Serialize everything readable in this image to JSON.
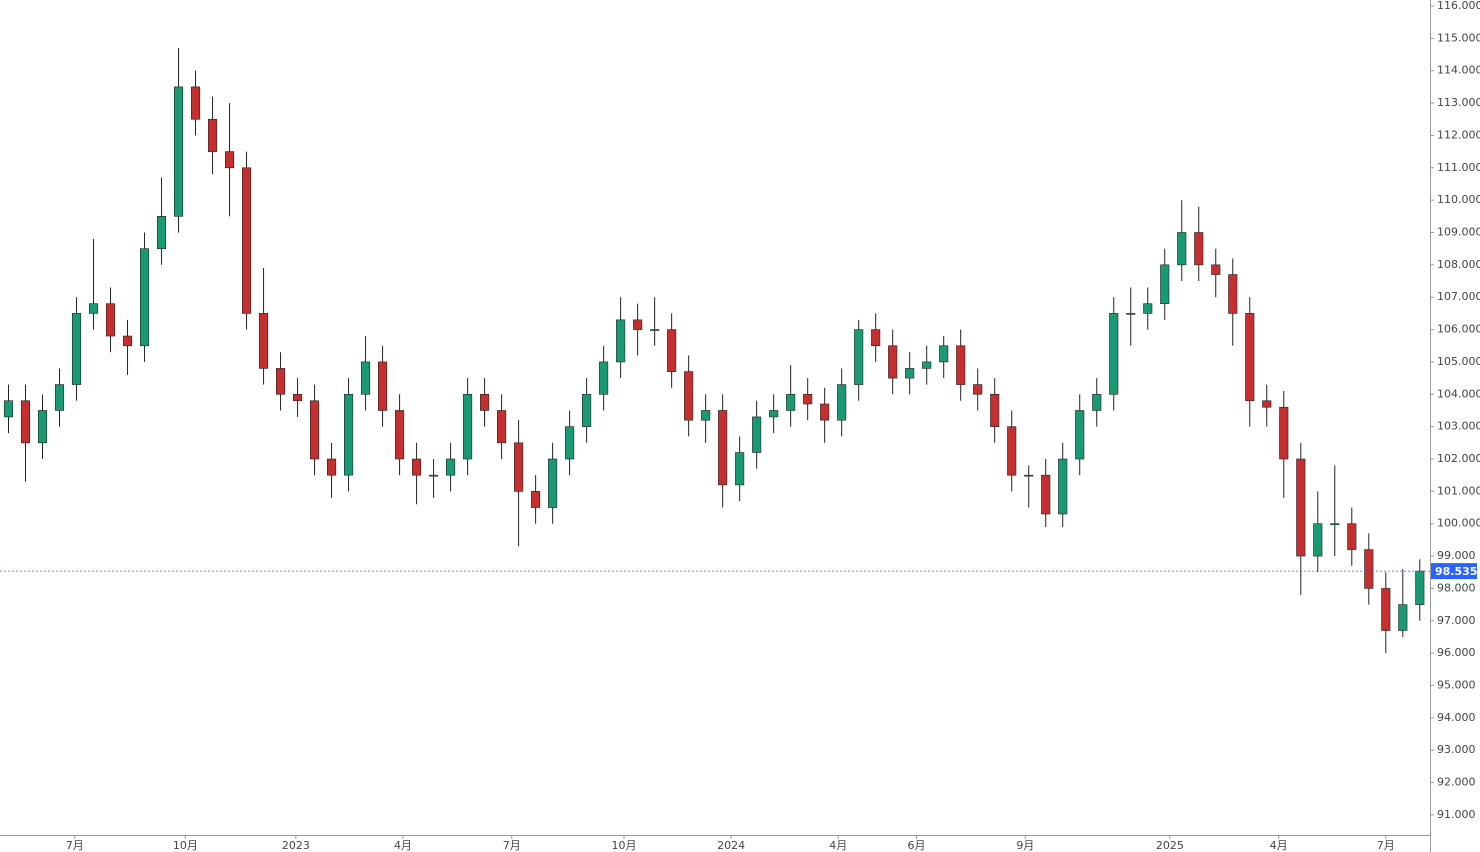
{
  "chart_data": {
    "type": "candlestick",
    "open": [
      103.3,
      103.8,
      102.5,
      103.5,
      104.3,
      106.5,
      106.8,
      105.8,
      105.5,
      108.5,
      109.5,
      113.5,
      112.5,
      111.5,
      111,
      106.5,
      104.8,
      104,
      103.8,
      102,
      101.5,
      104,
      105,
      103.5,
      102,
      101.5,
      101.5,
      102,
      104,
      103.5,
      102.5,
      101,
      100.5,
      102,
      103,
      104,
      105,
      106.3,
      106,
      106,
      104.7,
      103.2,
      103.5,
      101.2,
      102.2,
      103.3,
      103.5,
      104,
      103.7,
      103.2,
      104.3,
      106,
      105.5,
      104.5,
      104.8,
      105,
      105.5,
      104.3,
      104,
      103,
      101.5,
      101.5,
      100.3,
      102,
      103.5,
      104,
      106.5,
      106.5,
      106.8,
      108,
      109,
      108,
      107.7,
      106.5,
      103.8,
      103.6,
      102,
      99,
      100,
      100,
      99.2,
      98,
      96.7,
      97.5
    ],
    "high": [
      104.3,
      104.3,
      104,
      104.8,
      107,
      108.8,
      107.3,
      106.3,
      109,
      110.7,
      114.7,
      114,
      113.2,
      113,
      111.5,
      107.9,
      105.3,
      104.5,
      104.3,
      102.5,
      104.5,
      105.8,
      105.5,
      104,
      102.5,
      102,
      102.5,
      104.5,
      104.5,
      104,
      103.2,
      101.5,
      102.5,
      103.5,
      104.5,
      105.5,
      107,
      106.8,
      107,
      106.5,
      105.2,
      104,
      104,
      102.7,
      103.8,
      104,
      104.9,
      104.5,
      104.2,
      104.8,
      106.3,
      106.5,
      106,
      105.3,
      105.5,
      105.8,
      106,
      104.8,
      104.5,
      103.5,
      101.8,
      102,
      102.5,
      104,
      104.5,
      107,
      107.3,
      107.3,
      108.5,
      110,
      109.8,
      108.5,
      108.2,
      107,
      104.3,
      104.1,
      102.5,
      101,
      101.8,
      100.5,
      99.7,
      98.5,
      98.6,
      98.9
    ],
    "low": [
      102.8,
      101.3,
      102,
      103,
      103.8,
      106,
      105.3,
      104.6,
      105,
      108,
      109,
      112,
      110.8,
      109.5,
      106,
      104.3,
      103.5,
      103.3,
      101.5,
      100.8,
      101,
      103.5,
      103,
      101.5,
      100.6,
      100.8,
      101,
      101.5,
      103,
      102,
      99.3,
      100,
      100,
      101.5,
      102.5,
      103.5,
      104.5,
      105.2,
      105.5,
      104.2,
      102.7,
      102.5,
      100.5,
      100.7,
      101.7,
      102.8,
      103,
      103.2,
      102.5,
      102.7,
      103.8,
      105,
      104,
      104,
      104.3,
      104.5,
      103.8,
      103.5,
      102.5,
      101,
      100.5,
      99.9,
      99.9,
      101.5,
      103,
      103.5,
      105.5,
      106,
      106.3,
      107.5,
      107.5,
      107,
      105.5,
      103,
      103,
      100.8,
      97.8,
      98.5,
      99,
      98.7,
      97.5,
      96,
      96.5,
      97
    ],
    "close": [
      103.8,
      102.5,
      103.5,
      104.3,
      106.5,
      106.8,
      105.8,
      105.5,
      108.5,
      109.5,
      113.5,
      112.5,
      111.5,
      111,
      106.5,
      104.8,
      104,
      103.8,
      102,
      101.5,
      104,
      105,
      103.5,
      102,
      101.5,
      101.5,
      102,
      104,
      103.5,
      102.5,
      101,
      100.5,
      102,
      103,
      104,
      105,
      106.3,
      106,
      106,
      104.7,
      103.2,
      103.5,
      101.2,
      102.2,
      103.3,
      103.5,
      104,
      103.7,
      103.2,
      104.3,
      106,
      105.5,
      104.5,
      104.8,
      105,
      105.5,
      104.3,
      104,
      103,
      101.5,
      101.5,
      100.3,
      102,
      103.5,
      104,
      106.5,
      106.5,
      106.8,
      108,
      109,
      108,
      107.7,
      106.5,
      103.8,
      103.6,
      102,
      99,
      100,
      100,
      99.2,
      98,
      96.7,
      97.5,
      98.535
    ],
    "up_color": "#1a9a74",
    "down_color": "#c62f2f",
    "last_price": 98.535,
    "xlim": [
      -0.5,
      83.6
    ],
    "ylim": [
      90.38,
      116.185
    ],
    "xticks": [
      {
        "value": 3.9,
        "label": "7月"
      },
      {
        "value": 10.4,
        "label": "10月"
      },
      {
        "value": 16.9,
        "label": "2023"
      },
      {
        "value": 23.2,
        "label": "4月"
      },
      {
        "value": 29.6,
        "label": "7月"
      },
      {
        "value": 36.2,
        "label": "10月"
      },
      {
        "value": 42.5,
        "label": "2024"
      },
      {
        "value": 48.8,
        "label": "4月"
      },
      {
        "value": 53.4,
        "label": "6月"
      },
      {
        "value": 59.8,
        "label": "9月"
      },
      {
        "value": 68.3,
        "label": "2025"
      },
      {
        "value": 74.7,
        "label": "4月"
      },
      {
        "value": 81,
        "label": "7月"
      }
    ],
    "yticks": [
      {
        "value": 91,
        "label": "91.000"
      },
      {
        "value": 92,
        "label": "92.000"
      },
      {
        "value": 93,
        "label": "93.000"
      },
      {
        "value": 94,
        "label": "94.000"
      },
      {
        "value": 95,
        "label": "95.000"
      },
      {
        "value": 96,
        "label": "96.000"
      },
      {
        "value": 97,
        "label": "97.000"
      },
      {
        "value": 98,
        "label": "98.000"
      },
      {
        "value": 99,
        "label": "99.000"
      },
      {
        "value": 100,
        "label": "100.000"
      },
      {
        "value": 101,
        "label": "101.000"
      },
      {
        "value": 102,
        "label": "102.000"
      },
      {
        "value": 103,
        "label": "103.000"
      },
      {
        "value": 104,
        "label": "104.000"
      },
      {
        "value": 105,
        "label": "105.000"
      },
      {
        "value": 106,
        "label": "106.000"
      },
      {
        "value": 107,
        "label": "107.000"
      },
      {
        "value": 108,
        "label": "108.000"
      },
      {
        "value": 109,
        "label": "109.000"
      },
      {
        "value": 110,
        "label": "110.000"
      },
      {
        "value": 111,
        "label": "111.000"
      },
      {
        "value": 112,
        "label": "112.000"
      },
      {
        "value": 113,
        "label": "113.000"
      },
      {
        "value": 114,
        "label": "114.000"
      },
      {
        "value": 115,
        "label": "115.000"
      },
      {
        "value": 116,
        "label": "116.000"
      }
    ]
  }
}
